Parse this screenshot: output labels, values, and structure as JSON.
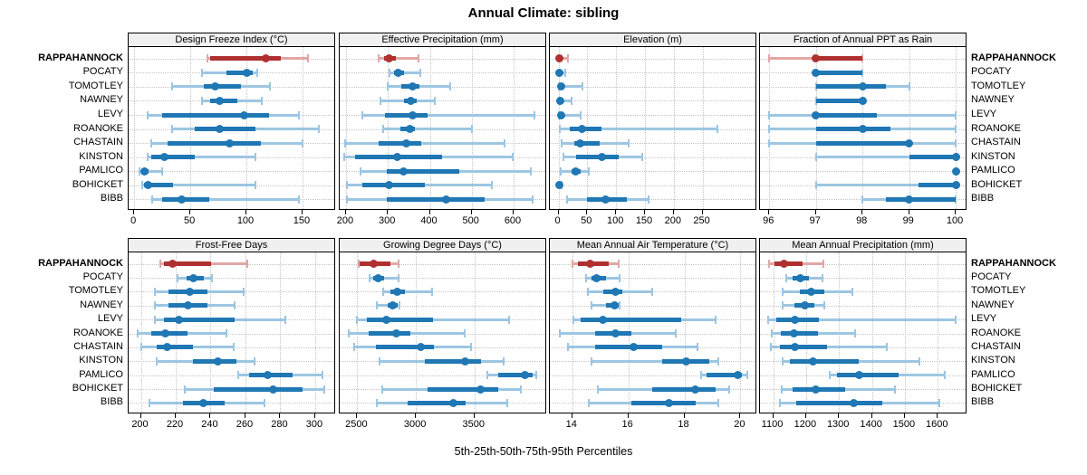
{
  "title": "Annual Climate: sibling",
  "footer": "5th-25th-50th-75th-95th Percentiles",
  "sites": [
    "RAPPAHANNOCK",
    "POCATY",
    "TOMOTLEY",
    "NAWNEY",
    "LEVY",
    "ROANOKE",
    "CHASTAIN",
    "KINSTON",
    "PAMLICO",
    "BOHICKET",
    "BIBB"
  ],
  "highlight_site": "RAPPAHANNOCK",
  "percentile_labels": [
    "5th",
    "25th",
    "50th",
    "75th",
    "95th"
  ],
  "colors": {
    "highlight": "#B03030",
    "highlight_light": "#E2A6A6",
    "series": "#1F77B4",
    "series_light": "#9CC6E2",
    "grid": "#C4C4C4",
    "strip_bg": "#F0F0F0",
    "border": "#000000"
  },
  "chart_data": [
    {
      "type": "scatter",
      "title": "Design Freeze Index (°C)",
      "row": 1,
      "xlim": [
        -5,
        180
      ],
      "ticks": [
        0,
        50,
        100,
        150
      ],
      "values": [
        [
          65,
          68,
          117,
          131,
          155
        ],
        [
          60,
          82,
          100,
          106,
          110
        ],
        [
          34,
          62,
          72,
          95,
          121
        ],
        [
          60,
          68,
          76,
          92,
          114
        ],
        [
          12,
          25,
          98,
          120,
          147
        ],
        [
          34,
          54,
          76,
          108,
          165
        ],
        [
          15,
          30,
          85,
          113,
          150
        ],
        [
          12,
          15,
          27,
          54,
          108
        ],
        [
          5,
          6,
          9,
          13,
          25
        ],
        [
          7,
          9,
          12,
          35,
          108
        ],
        [
          16,
          25,
          42,
          67,
          147
        ]
      ]
    },
    {
      "type": "scatter",
      "title": "Effective Precipitation (mm)",
      "row": 1,
      "xlim": [
        185,
        680
      ],
      "ticks": [
        200,
        300,
        400,
        500,
        600
      ],
      "values": [
        [
          277,
          290,
          303,
          318,
          372
        ],
        [
          303,
          315,
          325,
          338,
          378
        ],
        [
          300,
          332,
          358,
          375,
          448
        ],
        [
          282,
          338,
          355,
          368,
          412
        ],
        [
          238,
          292,
          358,
          395,
          650
        ],
        [
          288,
          330,
          352,
          365,
          500
        ],
        [
          198,
          278,
          343,
          380,
          578
        ],
        [
          195,
          222,
          322,
          430,
          598
        ],
        [
          235,
          298,
          337,
          470,
          640
        ],
        [
          202,
          240,
          302,
          388,
          548
        ],
        [
          202,
          298,
          438,
          530,
          645
        ]
      ]
    },
    {
      "type": "scatter",
      "title": "Elevation (m)",
      "row": 1,
      "xlim": [
        -15,
        345
      ],
      "ticks": [
        0,
        50,
        100,
        150,
        200,
        250
      ],
      "values": [
        [
          0,
          1,
          2,
          6,
          17
        ],
        [
          0,
          1,
          2,
          4,
          11
        ],
        [
          1,
          2,
          4,
          8,
          41
        ],
        [
          0,
          2,
          3,
          9,
          23
        ],
        [
          1,
          2,
          4,
          8,
          38
        ],
        [
          2,
          20,
          40,
          75,
          276
        ],
        [
          5,
          28,
          38,
          72,
          122
        ],
        [
          8,
          30,
          75,
          105,
          145
        ],
        [
          3,
          22,
          30,
          38,
          52
        ],
        [
          0,
          0,
          1,
          2,
          6
        ],
        [
          15,
          50,
          82,
          118,
          157
        ]
      ]
    },
    {
      "type": "scatter",
      "title": "Fraction of Annual PPT as Rain",
      "row": 1,
      "xlim": [
        95.8,
        100.25
      ],
      "ticks": [
        96,
        97,
        98,
        99,
        100
      ],
      "values": [
        [
          96,
          97,
          97,
          98,
          98
        ],
        [
          97,
          97,
          97,
          98,
          98
        ],
        [
          97,
          97,
          98,
          98.5,
          99
        ],
        [
          97,
          97,
          98,
          98,
          98
        ],
        [
          96,
          97,
          97,
          98.3,
          100
        ],
        [
          96,
          97,
          98,
          98.6,
          100
        ],
        [
          96,
          97,
          99,
          99,
          100
        ],
        [
          97,
          99,
          100,
          100,
          100
        ],
        [
          100,
          100,
          100,
          100,
          100
        ],
        [
          97,
          99.2,
          100,
          100,
          100
        ],
        [
          98,
          98.5,
          99,
          100,
          100
        ]
      ]
    },
    {
      "type": "scatter",
      "title": "Frost-Free Days",
      "row": 2,
      "xlim": [
        193,
        312
      ],
      "ticks": [
        200,
        220,
        240,
        260,
        280,
        300
      ],
      "values": [
        [
          211,
          213,
          218,
          240,
          261
        ],
        [
          221,
          226,
          230,
          236,
          241
        ],
        [
          208,
          216,
          228,
          238,
          259
        ],
        [
          208,
          216,
          227,
          238,
          254
        ],
        [
          208,
          213,
          222,
          254,
          283
        ],
        [
          198,
          206,
          214,
          227,
          249
        ],
        [
          200,
          209,
          215,
          230,
          253
        ],
        [
          209,
          230,
          244,
          255,
          265
        ],
        [
          256,
          262,
          273,
          287,
          304
        ],
        [
          225,
          242,
          276,
          293,
          305
        ],
        [
          205,
          224,
          236,
          248,
          271
        ]
      ]
    },
    {
      "type": "scatter",
      "title": "Growing Degree Days (°C)",
      "row": 2,
      "xlim": [
        2350,
        4120
      ],
      "ticks": [
        2500,
        3000,
        3500
      ],
      "values": [
        [
          2510,
          2520,
          2640,
          2780,
          2855
        ],
        [
          2605,
          2635,
          2680,
          2730,
          2850
        ],
        [
          2720,
          2780,
          2840,
          2905,
          3140
        ],
        [
          2670,
          2760,
          2805,
          2845,
          2860
        ],
        [
          2500,
          2580,
          2750,
          3145,
          3795
        ],
        [
          2430,
          2600,
          2830,
          2950,
          3420
        ],
        [
          2470,
          2660,
          3040,
          3155,
          3470
        ],
        [
          2690,
          3080,
          3420,
          3560,
          3745
        ],
        [
          3610,
          3700,
          3930,
          3995,
          4025
        ],
        [
          2715,
          3100,
          3550,
          3705,
          3895
        ],
        [
          2665,
          2930,
          3320,
          3425,
          3780
        ]
      ]
    },
    {
      "type": "scatter",
      "title": "Mean Annual Air Temperature (°C)",
      "row": 2,
      "xlim": [
        13.2,
        20.6
      ],
      "ticks": [
        14,
        16,
        18,
        20
      ],
      "values": [
        [
          14.0,
          14.2,
          14.65,
          15.3,
          15.65
        ],
        [
          14.5,
          14.7,
          14.85,
          15.2,
          15.7
        ],
        [
          14.55,
          15.1,
          15.55,
          15.8,
          16.85
        ],
        [
          14.7,
          15.2,
          15.5,
          15.65,
          15.7
        ],
        [
          14.05,
          14.3,
          15.1,
          17.9,
          19.1
        ],
        [
          13.55,
          14.8,
          15.55,
          16.1,
          17.7
        ],
        [
          13.85,
          14.8,
          16.2,
          17.2,
          18.45
        ],
        [
          14.7,
          17.2,
          18.05,
          18.9,
          19.2
        ],
        [
          18.6,
          18.8,
          19.9,
          20.05,
          20.25
        ],
        [
          14.9,
          16.85,
          18.4,
          19.1,
          19.6
        ],
        [
          14.6,
          16.1,
          17.45,
          18.4,
          19.2
        ]
      ]
    },
    {
      "type": "scatter",
      "title": "Mean Annual Precipitation (mm)",
      "row": 2,
      "xlim": [
        1060,
        1690
      ],
      "ticks": [
        1100,
        1200,
        1300,
        1400,
        1500,
        1600
      ],
      "values": [
        [
          1088,
          1105,
          1132,
          1190,
          1252
        ],
        [
          1140,
          1160,
          1182,
          1210,
          1250
        ],
        [
          1130,
          1180,
          1215,
          1255,
          1340
        ],
        [
          1128,
          1165,
          1195,
          1225,
          1255
        ],
        [
          1085,
          1110,
          1165,
          1240,
          1655
        ],
        [
          1097,
          1122,
          1163,
          1235,
          1350
        ],
        [
          1093,
          1120,
          1165,
          1265,
          1445
        ],
        [
          1128,
          1152,
          1220,
          1360,
          1545
        ],
        [
          1272,
          1295,
          1362,
          1480,
          1620
        ],
        [
          1125,
          1160,
          1228,
          1320,
          1470
        ],
        [
          1120,
          1170,
          1345,
          1430,
          1605
        ]
      ]
    }
  ]
}
